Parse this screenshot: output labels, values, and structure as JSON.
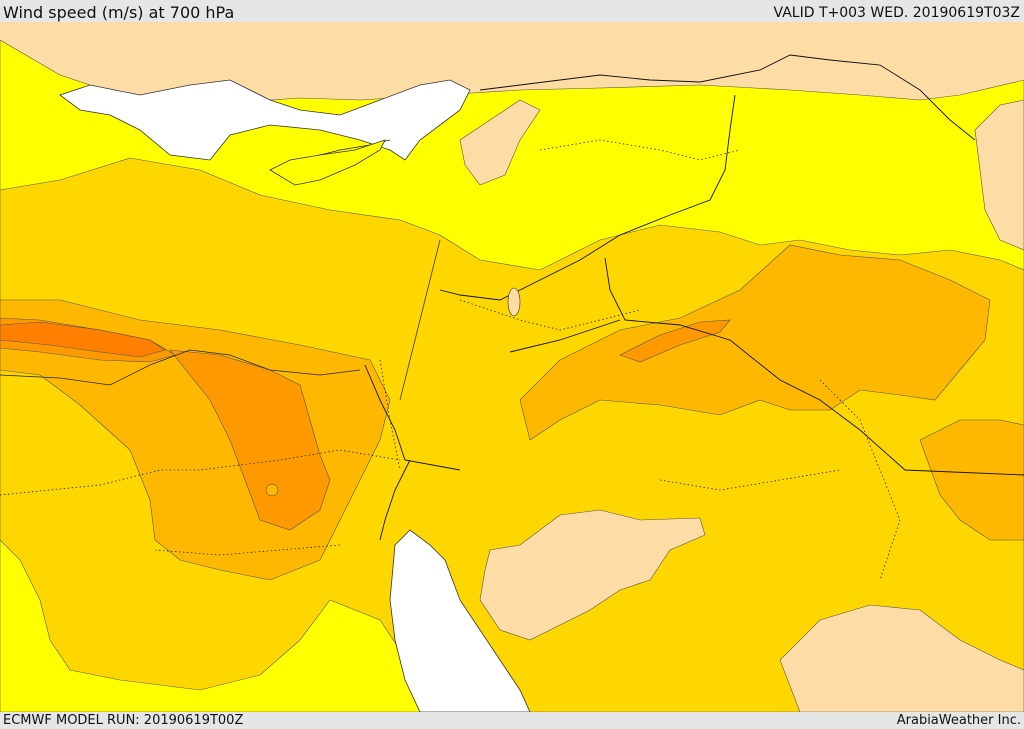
{
  "header": {
    "title": "Wind speed (m/s) at 700 hPa",
    "valid": "VALID T+003 WED. 20190619T03Z"
  },
  "footer": {
    "model_run": "ECMWF MODEL RUN: 20190619T00Z",
    "credit": "ArabiaWeather Inc."
  },
  "colors": {
    "land_bg": "#fddca6",
    "sea": "#ffffff",
    "shade_1": "#ffff00",
    "shade_2": "#ffd700",
    "shade_3": "#ffb800",
    "shade_4": "#ff9900",
    "shade_5": "#ff7f00"
  }
}
